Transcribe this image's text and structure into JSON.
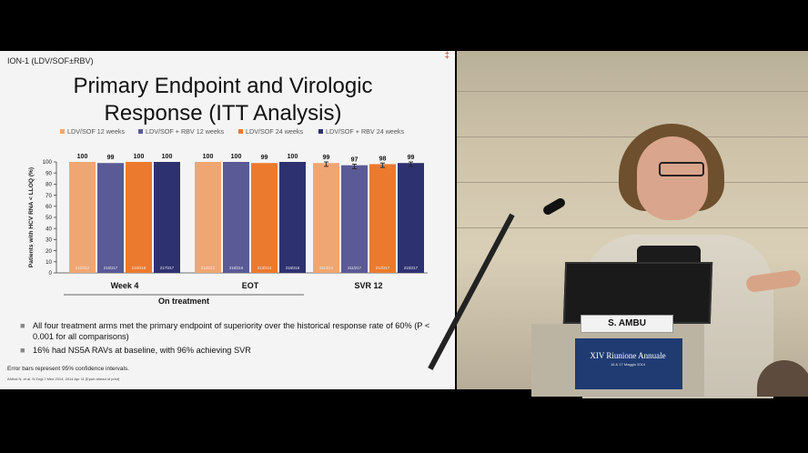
{
  "slide": {
    "study_label": "ION-1 (LDV/SOF±RBV)",
    "corner_mark": "‡",
    "title_line1": "Primary Endpoint and Virologic",
    "title_line2": "Response (ITT Analysis)",
    "bullets": [
      "All four treatment arms met the primary endpoint of superiority over the historical response rate of 60% (P < 0.001 for all comparisons)",
      "16% had NS5A RAVs at baseline, with 96% achieving SVR"
    ],
    "footnote": "Error bars represent 95% confidence intervals.",
    "citation": "Afdhal N, et al. N Engl J Med 2014; 2014 Apr 11 [Epub ahead of print]"
  },
  "chart_data": {
    "type": "bar",
    "ylabel": "Patients with HCV RNA < LLOQ (%)",
    "ylim": [
      0,
      100
    ],
    "yticks": [
      0,
      10,
      20,
      30,
      40,
      50,
      60,
      70,
      80,
      90,
      100
    ],
    "categories": [
      "Week 4",
      "EOT",
      "SVR 12"
    ],
    "group_label": "On treatment",
    "series": [
      {
        "name": "LDV/SOF 12 weeks",
        "color": "#f0a673",
        "values": [
          100,
          100,
          99
        ],
        "counts": [
          "212/212",
          "212/212",
          "211/214"
        ]
      },
      {
        "name": "LDV/SOF + RBV 12 weeks",
        "color": "#5a5a96",
        "values": [
          99,
          100,
          97
        ],
        "counts": [
          "215/217",
          "216/216",
          "211/217"
        ]
      },
      {
        "name": "LDV/SOF 24 weeks",
        "color": "#ec7a2e",
        "values": [
          100,
          99,
          98
        ],
        "counts": [
          "216/216",
          "213/214",
          "212/217"
        ]
      },
      {
        "name": "LDV/SOF + RBV 24 weeks",
        "color": "#2e3170",
        "values": [
          100,
          100,
          99
        ],
        "counts": [
          "217/217",
          "216/216",
          "215/217"
        ]
      }
    ],
    "value_labels": [
      [
        "100",
        "99",
        "100",
        "100"
      ],
      [
        "100",
        "100",
        "99",
        "100"
      ],
      [
        "99",
        "97",
        "98",
        "99"
      ]
    ],
    "error_bars_groups": [
      2
    ]
  },
  "video": {
    "nameplate": "S. AMBU",
    "banner_title": "XIV Riunione Annuale",
    "banner_sub": "16 & 17 Maggio 2014"
  }
}
